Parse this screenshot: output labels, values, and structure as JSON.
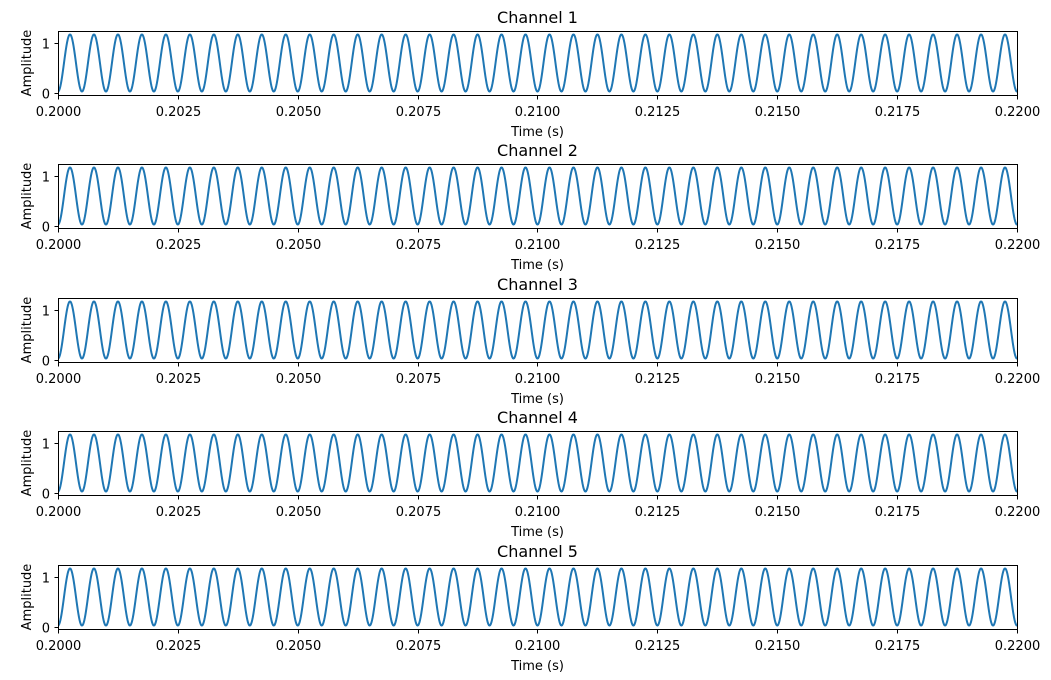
{
  "figure": {
    "background": "#ffffff",
    "line_color": "#1f77b4"
  },
  "chart_data": [
    {
      "type": "line",
      "title": "Channel 1",
      "xlabel": "Time (s)",
      "ylabel": "Amplitude",
      "xlim": [
        0.2,
        0.22
      ],
      "ylim": [
        -0.05,
        1.25
      ],
      "xticks": [
        0.2,
        0.2025,
        0.205,
        0.2075,
        0.21,
        0.2125,
        0.215,
        0.2175,
        0.22
      ],
      "xtick_labels": [
        "0.2000",
        "0.2025",
        "0.2050",
        "0.2075",
        "0.2100",
        "0.2125",
        "0.2150",
        "0.2175",
        "0.2200"
      ],
      "yticks": [
        0,
        1
      ],
      "ytick_labels": [
        "0",
        "1"
      ],
      "grid": false,
      "series": [
        {
          "frequency_hz": 2000,
          "offset": 0.6,
          "amplitude": 0.58,
          "phase_deg": -90,
          "x_range": [
            0.2,
            0.22
          ]
        }
      ]
    },
    {
      "type": "line",
      "title": "Channel 2",
      "xlabel": "Time (s)",
      "ylabel": "Amplitude",
      "xlim": [
        0.2,
        0.22
      ],
      "ylim": [
        -0.05,
        1.25
      ],
      "xticks": [
        0.2,
        0.2025,
        0.205,
        0.2075,
        0.21,
        0.2125,
        0.215,
        0.2175,
        0.22
      ],
      "xtick_labels": [
        "0.2000",
        "0.2025",
        "0.2050",
        "0.2075",
        "0.2100",
        "0.2125",
        "0.2150",
        "0.2175",
        "0.2200"
      ],
      "yticks": [
        0,
        1
      ],
      "ytick_labels": [
        "0",
        "1"
      ],
      "grid": false,
      "series": [
        {
          "frequency_hz": 2000,
          "offset": 0.6,
          "amplitude": 0.58,
          "phase_deg": -90,
          "x_range": [
            0.2,
            0.22
          ]
        }
      ]
    },
    {
      "type": "line",
      "title": "Channel 3",
      "xlabel": "Time (s)",
      "ylabel": "Amplitude",
      "xlim": [
        0.2,
        0.22
      ],
      "ylim": [
        -0.05,
        1.25
      ],
      "xticks": [
        0.2,
        0.2025,
        0.205,
        0.2075,
        0.21,
        0.2125,
        0.215,
        0.2175,
        0.22
      ],
      "xtick_labels": [
        "0.2000",
        "0.2025",
        "0.2050",
        "0.2075",
        "0.2100",
        "0.2125",
        "0.2150",
        "0.2175",
        "0.2200"
      ],
      "yticks": [
        0,
        1
      ],
      "ytick_labels": [
        "0",
        "1"
      ],
      "grid": false,
      "series": [
        {
          "frequency_hz": 2000,
          "offset": 0.6,
          "amplitude": 0.58,
          "phase_deg": -90,
          "x_range": [
            0.2,
            0.22
          ]
        }
      ]
    },
    {
      "type": "line",
      "title": "Channel 4",
      "xlabel": "Time (s)",
      "ylabel": "Amplitude",
      "xlim": [
        0.2,
        0.22
      ],
      "ylim": [
        -0.05,
        1.25
      ],
      "xticks": [
        0.2,
        0.2025,
        0.205,
        0.2075,
        0.21,
        0.2125,
        0.215,
        0.2175,
        0.22
      ],
      "xtick_labels": [
        "0.2000",
        "0.2025",
        "0.2050",
        "0.2075",
        "0.2100",
        "0.2125",
        "0.2150",
        "0.2175",
        "0.2200"
      ],
      "yticks": [
        0,
        1
      ],
      "ytick_labels": [
        "0",
        "1"
      ],
      "grid": false,
      "series": [
        {
          "frequency_hz": 2000,
          "offset": 0.6,
          "amplitude": 0.58,
          "phase_deg": -90,
          "x_range": [
            0.2,
            0.22
          ]
        }
      ]
    },
    {
      "type": "line",
      "title": "Channel 5",
      "xlabel": "Time (s)",
      "ylabel": "Amplitude",
      "xlim": [
        0.2,
        0.22
      ],
      "ylim": [
        -0.05,
        1.25
      ],
      "xticks": [
        0.2,
        0.2025,
        0.205,
        0.2075,
        0.21,
        0.2125,
        0.215,
        0.2175,
        0.22
      ],
      "xtick_labels": [
        "0.2000",
        "0.2025",
        "0.2050",
        "0.2075",
        "0.2100",
        "0.2125",
        "0.2150",
        "0.2175",
        "0.2200"
      ],
      "yticks": [
        0,
        1
      ],
      "ytick_labels": [
        "0",
        "1"
      ],
      "grid": false,
      "series": [
        {
          "frequency_hz": 2000,
          "offset": 0.6,
          "amplitude": 0.58,
          "phase_deg": -90,
          "x_range": [
            0.2,
            0.22
          ]
        }
      ]
    }
  ]
}
